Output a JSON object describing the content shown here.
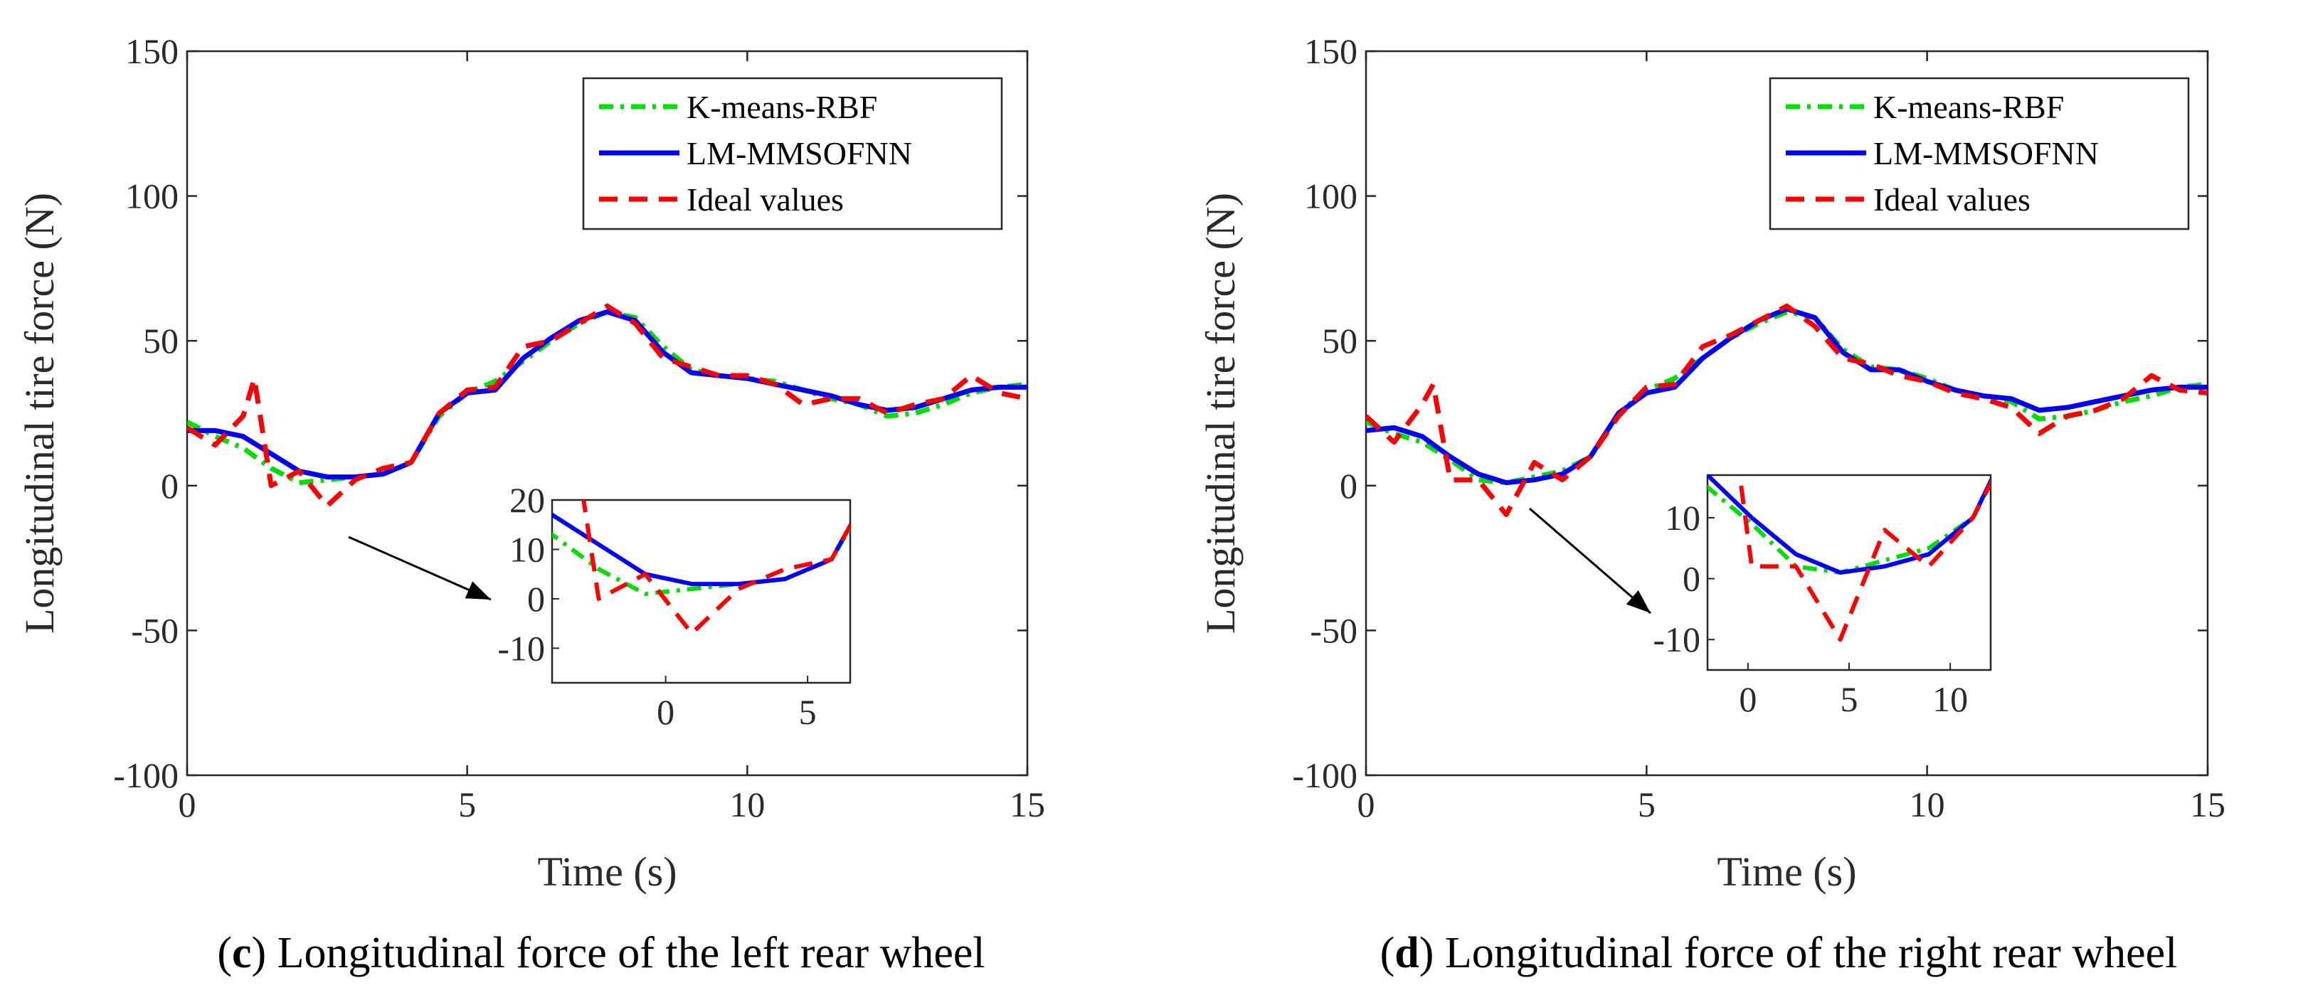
{
  "chart_data": [
    {
      "type": "line",
      "panel_label": "c",
      "caption": "Longitudinal force of the left rear wheel",
      "xlabel": "Time (s)",
      "ylabel": "Longitudinal tire force (N)",
      "xlim": [
        0,
        15
      ],
      "ylim": [
        -100,
        150
      ],
      "xticks": [
        "0",
        "5",
        "10",
        "15"
      ],
      "yticks": [
        "-100",
        "-50",
        "0",
        "50",
        "100",
        "150"
      ],
      "grid": false,
      "legend_position": "top-right",
      "legend": [
        "K-means-RBF",
        "LM-MMSOFNN",
        "Ideal values"
      ],
      "series": [
        {
          "name": "K-means-RBF",
          "color": "#00e000",
          "style": "dash-dot",
          "x": [
            0,
            0.5,
            1,
            1.5,
            2,
            2.5,
            3,
            3.5,
            4,
            4.5,
            5,
            5.5,
            6,
            6.5,
            7,
            7.5,
            8,
            8.5,
            9,
            9.5,
            10,
            10.5,
            11,
            11.5,
            12,
            12.5,
            13,
            13.5,
            14,
            14.5,
            15
          ],
          "values": [
            22,
            17,
            13,
            6,
            1,
            2,
            3,
            4,
            8,
            24,
            32,
            36,
            43,
            50,
            56,
            60,
            58,
            48,
            40,
            38,
            37,
            36,
            33,
            30,
            28,
            24,
            25,
            28,
            32,
            34,
            35
          ]
        },
        {
          "name": "LM-MMSOFNN",
          "color": "#0000ff",
          "style": "solid",
          "x": [
            0,
            0.5,
            1,
            1.5,
            2,
            2.5,
            3,
            3.5,
            4,
            4.5,
            5,
            5.5,
            6,
            6.5,
            7,
            7.5,
            8,
            8.5,
            9,
            9.5,
            10,
            10.5,
            11,
            11.5,
            12,
            12.5,
            13,
            13.5,
            14,
            14.5,
            15
          ],
          "values": [
            19,
            19,
            17,
            11,
            5,
            3,
            3,
            4,
            8,
            25,
            32,
            33,
            44,
            51,
            57,
            60,
            57,
            46,
            39,
            38,
            37,
            35,
            33,
            31,
            28,
            26,
            27,
            30,
            33,
            34,
            34
          ]
        },
        {
          "name": "Ideal values",
          "color": "#ff0000",
          "style": "dashed",
          "x": [
            0,
            0.5,
            1,
            1.2,
            1.5,
            2,
            2.5,
            3,
            3.5,
            4,
            4.5,
            5,
            5.5,
            6,
            6.5,
            7,
            7.5,
            8,
            8.5,
            9,
            9.5,
            10,
            10.5,
            11,
            11.5,
            12,
            12.5,
            13,
            13.5,
            14,
            14.5,
            15
          ],
          "values": [
            20,
            14,
            24,
            37,
            0,
            5,
            -7,
            2,
            6,
            8,
            25,
            33,
            34,
            48,
            50,
            56,
            62,
            56,
            44,
            41,
            38,
            38,
            35,
            28,
            30,
            30,
            25,
            28,
            30,
            38,
            32,
            30
          ]
        }
      ],
      "inset": {
        "xticks": [
          "0",
          "5"
        ],
        "yticks": [
          "20",
          "10",
          "0",
          "-10"
        ],
        "xlim": [
          -4,
          6.5
        ],
        "ylim": [
          -17,
          20
        ]
      }
    },
    {
      "type": "line",
      "panel_label": "d",
      "caption": "Longitudinal force of the right rear wheel",
      "xlabel": "Time (s)",
      "ylabel": "Longitudinal tire force (N)",
      "xlim": [
        0,
        15
      ],
      "ylim": [
        -100,
        150
      ],
      "xticks": [
        "0",
        "5",
        "10",
        "15"
      ],
      "yticks": [
        "-100",
        "-50",
        "0",
        "50",
        "100",
        "150"
      ],
      "grid": false,
      "legend_position": "top-right",
      "legend": [
        "K-means-RBF",
        "LM-MMSOFNN",
        "Ideal values"
      ],
      "series": [
        {
          "name": "K-means-RBF",
          "color": "#00e000",
          "style": "dash-dot",
          "x": [
            0,
            0.5,
            1,
            1.5,
            2,
            2.5,
            3,
            3.5,
            4,
            4.5,
            5,
            5.5,
            6,
            6.5,
            7,
            7.5,
            8,
            8.5,
            9,
            9.5,
            10,
            10.5,
            11,
            11.5,
            12,
            12.5,
            13,
            13.5,
            14,
            14.5,
            15
          ],
          "values": [
            22,
            18,
            15,
            9,
            2,
            1,
            3,
            5,
            10,
            25,
            33,
            37,
            44,
            51,
            56,
            60,
            58,
            47,
            41,
            40,
            37,
            33,
            31,
            29,
            23,
            24,
            26,
            29,
            31,
            34,
            35
          ]
        },
        {
          "name": "LM-MMSOFNN",
          "color": "#0000ff",
          "style": "solid",
          "x": [
            0,
            0.5,
            1,
            1.5,
            2,
            2.5,
            3,
            3.5,
            4,
            4.5,
            5,
            5.5,
            6,
            6.5,
            7,
            7.5,
            8,
            8.5,
            9,
            9.5,
            10,
            10.5,
            11,
            11.5,
            12,
            12.5,
            13,
            13.5,
            14,
            14.5,
            15
          ],
          "values": [
            19,
            20,
            17,
            10,
            4,
            1,
            2,
            4,
            10,
            25,
            32,
            34,
            44,
            51,
            57,
            61,
            58,
            46,
            40,
            40,
            36,
            33,
            31,
            30,
            26,
            27,
            29,
            31,
            33,
            34,
            34
          ]
        },
        {
          "name": "Ideal values",
          "color": "#ff0000",
          "style": "dashed",
          "x": [
            0,
            0.5,
            1,
            1.2,
            1.5,
            2,
            2.5,
            3,
            3.5,
            4,
            4.5,
            5,
            5.5,
            6,
            6.5,
            7,
            7.5,
            8,
            8.5,
            9,
            9.5,
            10,
            10.5,
            11,
            11.5,
            12,
            12.5,
            13,
            13.5,
            14,
            14.5,
            15
          ],
          "values": [
            24,
            15,
            28,
            35,
            2,
            2,
            -10,
            8,
            2,
            10,
            24,
            34,
            35,
            48,
            52,
            57,
            62,
            55,
            44,
            42,
            38,
            36,
            32,
            30,
            27,
            18,
            24,
            26,
            30,
            38,
            33,
            32
          ]
        }
      ],
      "inset": {
        "xticks": [
          "0",
          "5",
          "10"
        ],
        "yticks": [
          "10",
          "0",
          "-10"
        ],
        "xlim": [
          -2,
          12
        ],
        "ylim": [
          -15,
          17
        ]
      }
    }
  ]
}
